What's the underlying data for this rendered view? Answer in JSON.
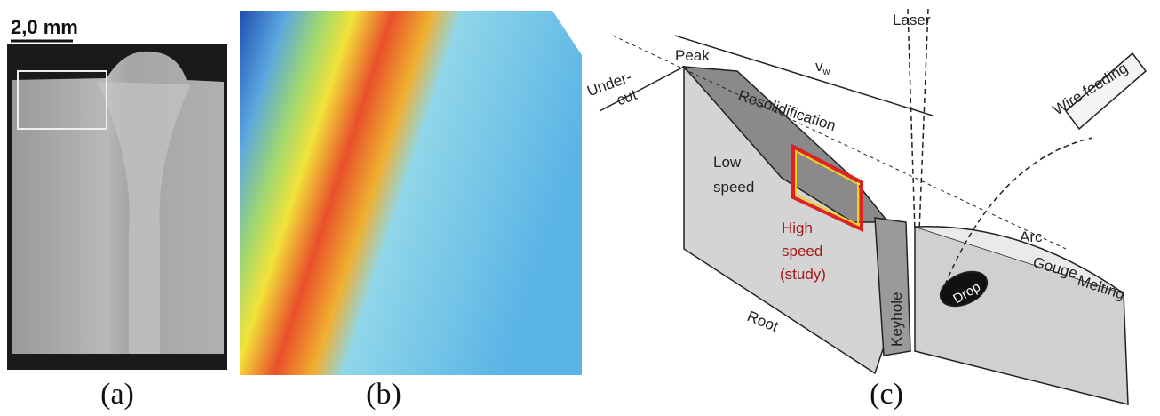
{
  "panels": [
    {
      "label": "(a)",
      "scale_bar": "2,0 mm"
    },
    {
      "label": "(b)"
    },
    {
      "label": "(c)",
      "labels": {
        "peak": "Peak",
        "undercut": [
          "Under-",
          "cut"
        ],
        "resolidification": "Resolidification",
        "velocity": {
          "base": "v",
          "sub": "w"
        },
        "laser": "Laser",
        "wire_feeding": "Wire feeding",
        "low_speed": [
          "Low",
          "speed"
        ],
        "high_speed": [
          "High",
          "speed",
          "(study)"
        ],
        "drop": "Drop",
        "arc": "Arc",
        "gouge": "Gouge",
        "melting": "Melting",
        "keyhole": "Keyhole",
        "root": "Root"
      }
    }
  ]
}
